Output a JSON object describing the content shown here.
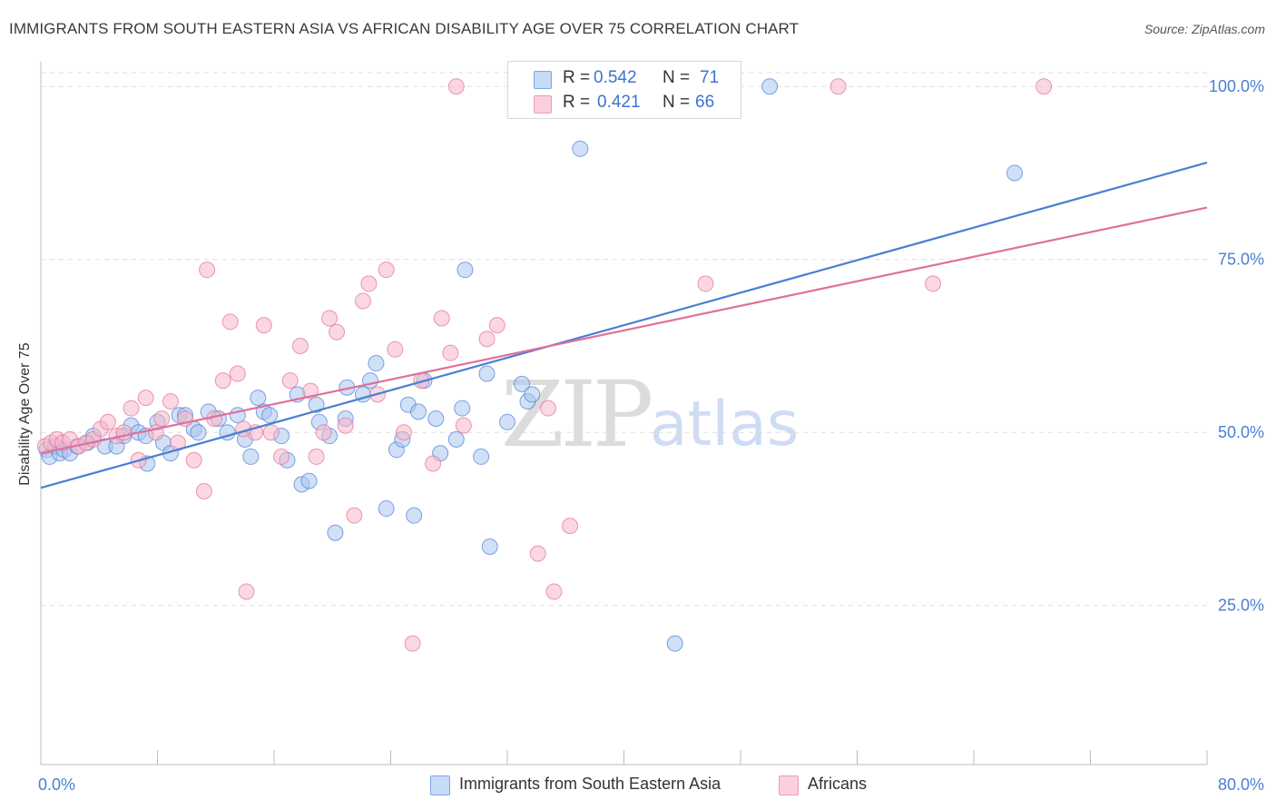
{
  "header": {
    "title": "IMMIGRANTS FROM SOUTH EASTERN ASIA VS AFRICAN DISABILITY AGE OVER 75 CORRELATION CHART",
    "source": "Source: ZipAtlas.com"
  },
  "watermark": {
    "zip": "ZIP",
    "atlas": "atlas"
  },
  "legend": {
    "rows": [
      {
        "r_label": "R =",
        "r_value": "0.542",
        "n_label": "N =",
        "n_value": "71",
        "color": "#a9c6ee"
      },
      {
        "r_label": "R =",
        "r_value": "0.421",
        "n_label": "N =",
        "n_value": "66",
        "color": "#f6b6c9"
      }
    ]
  },
  "bottom_legend": {
    "items": [
      {
        "label": "Immigrants from South Eastern Asia",
        "color": "#a9c6ee"
      },
      {
        "label": "Africans",
        "color": "#f6b6c9"
      }
    ]
  },
  "chart_data": {
    "type": "scatter",
    "title": "IMMIGRANTS FROM SOUTH EASTERN ASIA VS AFRICAN DISABILITY AGE OVER 75 CORRELATION CHART",
    "xlabel": "",
    "ylabel": "Disability Age Over 75",
    "xlim": [
      0,
      80
    ],
    "ylim": [
      2,
      102
    ],
    "x_tick_labels": [
      "0.0%",
      "80.0%"
    ],
    "y_ticks": [
      25,
      50,
      75,
      100
    ],
    "y_tick_labels": [
      "25.0%",
      "50.0%",
      "75.0%",
      "100.0%"
    ],
    "grid": true,
    "legend_position": "top-center",
    "series": [
      {
        "name": "Immigrants from South Eastern Asia",
        "color": "#4a7fd4",
        "fill": "#a9c6ee",
        "r": 0.542,
        "n": 71,
        "trend": {
          "x": [
            0,
            80
          ],
          "y": [
            42,
            89
          ]
        },
        "points": [
          [
            0.4,
            47.5
          ],
          [
            0.6,
            46.5
          ],
          [
            1.0,
            48
          ],
          [
            1.3,
            47
          ],
          [
            1.6,
            47.5
          ],
          [
            2.0,
            47
          ],
          [
            2.5,
            48
          ],
          [
            3.2,
            48.5
          ],
          [
            3.6,
            49.5
          ],
          [
            4.4,
            48
          ],
          [
            5.2,
            48
          ],
          [
            5.7,
            49.5
          ],
          [
            6.2,
            51
          ],
          [
            6.7,
            50
          ],
          [
            7.3,
            45.5
          ],
          [
            8.0,
            51.5
          ],
          [
            8.4,
            48.5
          ],
          [
            8.9,
            47
          ],
          [
            9.5,
            52.5
          ],
          [
            9.9,
            52.5
          ],
          [
            10.5,
            50.5
          ],
          [
            10.8,
            50
          ],
          [
            11.5,
            53
          ],
          [
            12.2,
            52
          ],
          [
            12.8,
            50
          ],
          [
            13.5,
            52.5
          ],
          [
            14.0,
            49
          ],
          [
            14.4,
            46.5
          ],
          [
            14.9,
            55
          ],
          [
            15.3,
            53
          ],
          [
            15.7,
            52.5
          ],
          [
            16.5,
            49.5
          ],
          [
            16.9,
            46
          ],
          [
            17.6,
            55.5
          ],
          [
            17.9,
            42.5
          ],
          [
            18.4,
            43
          ],
          [
            18.9,
            54
          ],
          [
            19.1,
            51.5
          ],
          [
            19.8,
            49.5
          ],
          [
            20.2,
            35.5
          ],
          [
            20.9,
            52
          ],
          [
            21.0,
            56.5
          ],
          [
            22.1,
            55.5
          ],
          [
            22.6,
            57.5
          ],
          [
            23.0,
            60
          ],
          [
            23.7,
            39
          ],
          [
            24.4,
            47.5
          ],
          [
            24.8,
            49
          ],
          [
            25.2,
            54
          ],
          [
            25.6,
            38
          ],
          [
            25.9,
            53
          ],
          [
            26.3,
            57.5
          ],
          [
            27.1,
            52
          ],
          [
            27.4,
            47
          ],
          [
            28.5,
            49
          ],
          [
            28.9,
            53.5
          ],
          [
            29.1,
            73.5
          ],
          [
            30.2,
            46.5
          ],
          [
            30.6,
            58.5
          ],
          [
            30.8,
            33.5
          ],
          [
            32.0,
            51.5
          ],
          [
            33.0,
            57
          ],
          [
            33.4,
            54.5
          ],
          [
            33.7,
            55.5
          ],
          [
            33.9,
            100
          ],
          [
            37.0,
            91
          ],
          [
            43.5,
            19.5
          ],
          [
            50.0,
            100
          ],
          [
            66.8,
            87.5
          ],
          [
            7.2,
            49.5
          ],
          [
            44.0,
            100
          ]
        ]
      },
      {
        "name": "Africans",
        "color": "#e0709a",
        "fill": "#f6b6c9",
        "r": 0.421,
        "n": 66,
        "trend": {
          "x": [
            0,
            80
          ],
          "y": [
            47,
            82.5
          ]
        },
        "points": [
          [
            0.3,
            48
          ],
          [
            0.7,
            48.5
          ],
          [
            1.1,
            49
          ],
          [
            1.5,
            48.5
          ],
          [
            2.0,
            49
          ],
          [
            2.6,
            48
          ],
          [
            3.1,
            48.5
          ],
          [
            3.6,
            49
          ],
          [
            4.1,
            50.5
          ],
          [
            4.6,
            51.5
          ],
          [
            5.2,
            49.5
          ],
          [
            5.7,
            50
          ],
          [
            6.2,
            53.5
          ],
          [
            6.7,
            46
          ],
          [
            7.2,
            55
          ],
          [
            7.9,
            50
          ],
          [
            8.3,
            52
          ],
          [
            8.9,
            54.5
          ],
          [
            9.4,
            48.5
          ],
          [
            9.9,
            52
          ],
          [
            10.5,
            46
          ],
          [
            11.2,
            41.5
          ],
          [
            11.4,
            73.5
          ],
          [
            11.9,
            52
          ],
          [
            12.5,
            57.5
          ],
          [
            13.0,
            66
          ],
          [
            13.5,
            58.5
          ],
          [
            14.1,
            27
          ],
          [
            14.7,
            50
          ],
          [
            15.3,
            65.5
          ],
          [
            15.8,
            50
          ],
          [
            16.5,
            46.5
          ],
          [
            17.1,
            57.5
          ],
          [
            17.8,
            62.5
          ],
          [
            18.5,
            56
          ],
          [
            18.9,
            46.5
          ],
          [
            19.4,
            50
          ],
          [
            19.8,
            66.5
          ],
          [
            20.3,
            64.5
          ],
          [
            20.9,
            51
          ],
          [
            21.5,
            38
          ],
          [
            22.1,
            69
          ],
          [
            22.5,
            71.5
          ],
          [
            23.1,
            55.5
          ],
          [
            23.7,
            73.5
          ],
          [
            24.3,
            62
          ],
          [
            24.9,
            50
          ],
          [
            25.5,
            19.5
          ],
          [
            26.1,
            57.5
          ],
          [
            26.9,
            45.5
          ],
          [
            27.5,
            66.5
          ],
          [
            28.1,
            61.5
          ],
          [
            29.0,
            51
          ],
          [
            30.6,
            63.5
          ],
          [
            31.3,
            65.5
          ],
          [
            34.1,
            32.5
          ],
          [
            34.8,
            53.5
          ],
          [
            35.2,
            27
          ],
          [
            36.3,
            36.5
          ],
          [
            45.6,
            71.5
          ],
          [
            61.2,
            71.5
          ],
          [
            28.5,
            100
          ],
          [
            54.7,
            100
          ],
          [
            68.8,
            100
          ],
          [
            33.0,
            100
          ],
          [
            13.9,
            50.5
          ]
        ]
      }
    ]
  }
}
